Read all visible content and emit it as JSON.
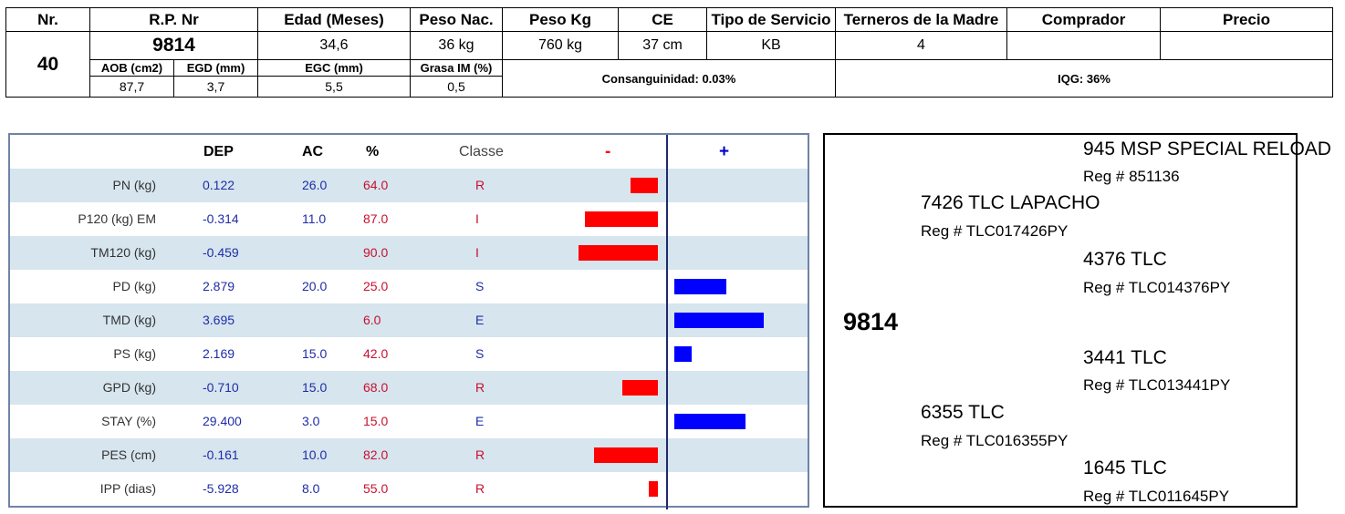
{
  "header": {
    "columns": [
      "Nr.",
      "R.P. Nr",
      "Edad (Meses)",
      "Peso Nac.",
      "Peso Kg",
      "CE",
      "Tipo de Servicio",
      "Terneros de la Madre",
      "Comprador",
      "Precio"
    ],
    "nr": "40",
    "rp": "9814",
    "edad": "34,6",
    "peso_nac": "36 kg",
    "peso_kg": "760 kg",
    "ce": "37 cm",
    "tipo_servicio": "KB",
    "terneros": "4",
    "comprador": "",
    "precio": "",
    "sub_labels": [
      "AOB (cm2)",
      "EGD (mm)",
      "EGC (mm)",
      "Grasa IM (%)"
    ],
    "sub_values": [
      "87,7",
      "3,7",
      "5,5",
      "0,5"
    ],
    "consanguinidad": "Consanguinidad: 0.03%",
    "iqg": "IQG: 36%"
  },
  "epd": {
    "headers": {
      "dep": "DEP",
      "ac": "AC",
      "pct": "%",
      "classe": "Classe",
      "minus": "-",
      "plus": "+"
    },
    "colors": {
      "negative": "#ff0000",
      "positive": "#0000ff",
      "shade": "#d6e5ee"
    },
    "rows": [
      {
        "trait": "PN (kg)",
        "dep": "0.122",
        "ac": "26.0",
        "pct": "64.0",
        "classe": "R",
        "bar_sign": "neg",
        "bar_len": 0.35
      },
      {
        "trait": "P120 (kg) EM",
        "dep": "-0.314",
        "ac": "11.0",
        "pct": "87.0",
        "classe": "I",
        "bar_sign": "neg",
        "bar_len": 0.92
      },
      {
        "trait": "TM120 (kg)",
        "dep": "-0.459",
        "ac": "",
        "pct": "90.0",
        "classe": "I",
        "bar_sign": "neg",
        "bar_len": 1.0
      },
      {
        "trait": "PD (kg)",
        "dep": "2.879",
        "ac": "20.0",
        "pct": "25.0",
        "classe": "S",
        "bar_sign": "pos",
        "bar_len": 0.57
      },
      {
        "trait": "TMD (kg)",
        "dep": "3.695",
        "ac": "",
        "pct": "6.0",
        "classe": "E",
        "bar_sign": "pos",
        "bar_len": 0.98
      },
      {
        "trait": "PS (kg)",
        "dep": "2.169",
        "ac": "15.0",
        "pct": "42.0",
        "classe": "S",
        "bar_sign": "pos",
        "bar_len": 0.19
      },
      {
        "trait": "GPD (kg)",
        "dep": "-0.710",
        "ac": "15.0",
        "pct": "68.0",
        "classe": "R",
        "bar_sign": "neg",
        "bar_len": 0.45
      },
      {
        "trait": "STAY (%)",
        "dep": "29.400",
        "ac": "3.0",
        "pct": "15.0",
        "classe": "E",
        "bar_sign": "pos",
        "bar_len": 0.78
      },
      {
        "trait": "PES (cm)",
        "dep": "-0.161",
        "ac": "10.0",
        "pct": "82.0",
        "classe": "R",
        "bar_sign": "neg",
        "bar_len": 0.8
      },
      {
        "trait": "IPP (dias)",
        "dep": "-5.928",
        "ac": "8.0",
        "pct": "55.0",
        "classe": "R",
        "bar_sign": "neg",
        "bar_len": 0.12
      }
    ]
  },
  "pedigree": {
    "animal": "9814",
    "sire": {
      "name": "7426 TLC LAPACHO",
      "reg": "Reg # TLC017426PY"
    },
    "sire_sire": {
      "name": "945 MSP SPECIAL RELOAD",
      "reg": "Reg # 851136"
    },
    "sire_dam": {
      "name": "4376 TLC",
      "reg": "Reg # TLC014376PY"
    },
    "dam": {
      "name": "6355 TLC",
      "reg": "Reg # TLC016355PY"
    },
    "dam_sire": {
      "name": "3441 TLC",
      "reg": "Reg # TLC013441PY"
    },
    "dam_dam": {
      "name": "1645 TLC",
      "reg": "Reg # TLC011645PY"
    }
  }
}
